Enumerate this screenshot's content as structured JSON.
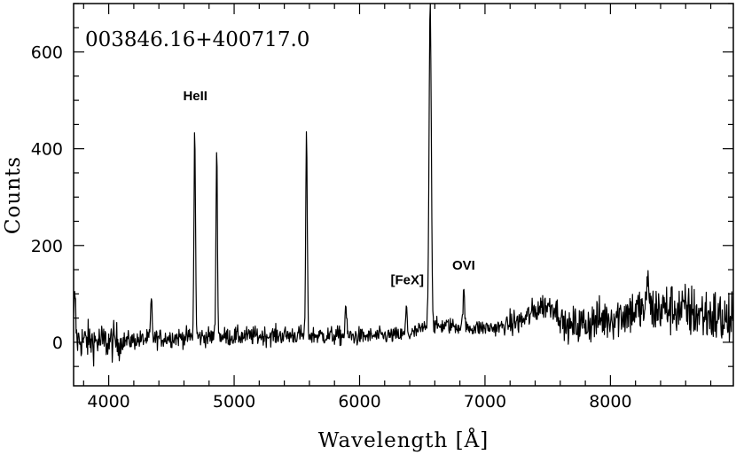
{
  "chart_data": {
    "type": "line",
    "title": "003846.16+400717.0",
    "xlabel": "Wavelength [Å]",
    "ylabel": "Counts",
    "xlim": [
      3720,
      8980
    ],
    "ylim": [
      -90,
      700
    ],
    "xticks": [
      4000,
      5000,
      6000,
      7000,
      8000
    ],
    "yticks": [
      0,
      200,
      400,
      600
    ],
    "grid": false,
    "series": [
      {
        "continuum": [
          [
            3720,
            5
          ],
          [
            4000,
            0
          ],
          [
            4500,
            10
          ],
          [
            5000,
            12
          ],
          [
            5500,
            15
          ],
          [
            6000,
            12
          ],
          [
            6400,
            15
          ],
          [
            6520,
            30
          ],
          [
            6700,
            35
          ],
          [
            6900,
            30
          ],
          [
            7100,
            30
          ],
          [
            7300,
            45
          ],
          [
            7450,
            75
          ],
          [
            7550,
            75
          ],
          [
            7650,
            30
          ],
          [
            7900,
            45
          ],
          [
            8200,
            65
          ],
          [
            8500,
            70
          ],
          [
            8800,
            55
          ],
          [
            8980,
            40
          ]
        ],
        "peaks": [
          {
            "x": 3730,
            "y": 105
          },
          {
            "x": 4340,
            "y": 90
          },
          {
            "x": 4686,
            "y": 433
          },
          {
            "x": 4861,
            "y": 392
          },
          {
            "x": 5577,
            "y": 435
          },
          {
            "x": 5890,
            "y": 75
          },
          {
            "x": 6374,
            "y": 75
          },
          {
            "x": 6563,
            "y": 700
          },
          {
            "x": 6830,
            "y": 107
          },
          {
            "x": 8300,
            "y": 148
          }
        ]
      }
    ],
    "annotations": [
      {
        "text": "HeII",
        "x": 4690,
        "y": 500
      },
      {
        "text": "[FeX]",
        "x": 6380,
        "y": 120
      },
      {
        "text": "OVI",
        "x": 6830,
        "y": 150
      }
    ]
  }
}
